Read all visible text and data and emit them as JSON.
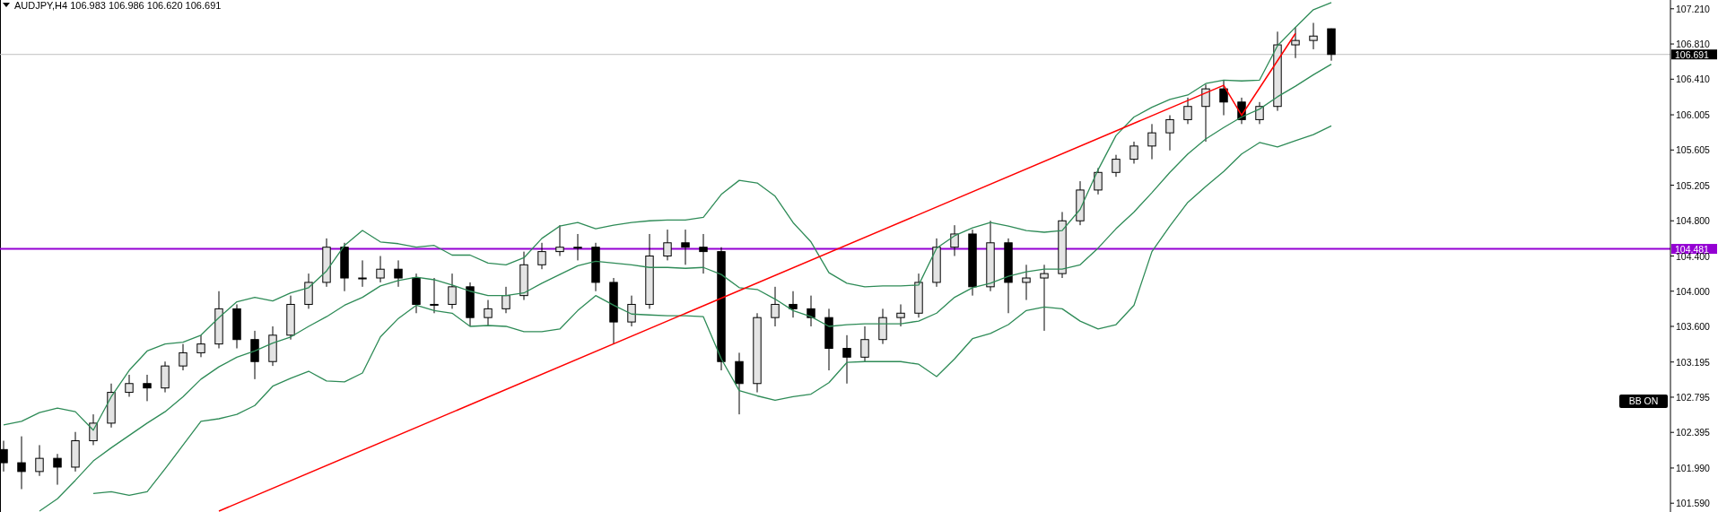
{
  "chart_data": {
    "type": "candlestick",
    "title": "AUDJPY,H4 106.983 106.986 106.620 106.691",
    "categories": [
      null,
      null,
      null,
      null,
      null,
      null,
      null,
      null,
      null,
      null,
      null,
      null,
      null,
      null,
      null,
      null,
      null,
      null,
      null,
      null,
      null,
      null,
      null,
      null,
      null,
      null,
      null,
      null,
      null,
      null,
      null,
      null,
      null,
      null,
      null,
      null,
      null,
      null,
      null,
      null,
      null,
      null,
      null,
      null,
      null,
      null,
      null,
      null,
      null,
      null,
      null,
      null,
      null,
      null,
      null,
      null,
      null,
      null,
      null,
      null,
      null,
      null,
      null,
      null,
      null,
      null,
      null,
      null,
      null,
      null,
      null,
      null,
      null,
      null,
      null
    ],
    "tick_labels": "y",
    "ylim": [
      101.49,
      107.31
    ],
    "yticks": [
      {
        "value": 101.59,
        "label": "101.590"
      },
      {
        "value": 101.99,
        "label": "101.990"
      },
      {
        "value": 102.395,
        "label": "102.395"
      },
      {
        "value": 102.795,
        "label": "102.795"
      },
      {
        "value": 103.195,
        "label": "103.195"
      },
      {
        "value": 103.6,
        "label": "103.600"
      },
      {
        "value": 104.0,
        "label": "104.000"
      },
      {
        "value": 104.4,
        "label": "104.400"
      },
      {
        "value": 104.8,
        "label": "104.800"
      },
      {
        "value": 105.205,
        "label": "105.205"
      },
      {
        "value": 105.605,
        "label": "105.605"
      },
      {
        "value": 106.005,
        "label": "106.005"
      },
      {
        "value": 106.41,
        "label": "106.410"
      },
      {
        "value": 106.81,
        "label": "106.810"
      },
      {
        "value": 107.21,
        "label": "107.210"
      }
    ],
    "ohlc": [
      [
        102.2,
        102.3,
        101.95,
        102.05
      ],
      [
        102.05,
        102.35,
        101.75,
        101.95
      ],
      [
        101.95,
        102.25,
        101.9,
        102.1
      ],
      [
        102.1,
        102.15,
        101.8,
        102.0
      ],
      [
        102.0,
        102.4,
        101.95,
        102.3
      ],
      [
        102.3,
        102.6,
        102.25,
        102.5
      ],
      [
        102.5,
        102.95,
        102.45,
        102.85
      ],
      [
        102.85,
        103.05,
        102.8,
        102.95
      ],
      [
        102.95,
        103.05,
        102.75,
        102.9
      ],
      [
        102.9,
        103.2,
        102.85,
        103.15
      ],
      [
        103.15,
        103.4,
        103.1,
        103.3
      ],
      [
        103.3,
        103.5,
        103.25,
        103.4
      ],
      [
        103.4,
        104.0,
        103.35,
        103.8
      ],
      [
        103.8,
        103.85,
        103.35,
        103.45
      ],
      [
        103.45,
        103.55,
        103.0,
        103.2
      ],
      [
        103.2,
        103.6,
        103.15,
        103.5
      ],
      [
        103.5,
        103.95,
        103.45,
        103.85
      ],
      [
        103.85,
        104.2,
        103.8,
        104.1
      ],
      [
        104.1,
        104.6,
        104.05,
        104.5
      ],
      [
        104.5,
        104.55,
        104.0,
        104.15
      ],
      [
        104.15,
        104.35,
        104.05,
        104.15
      ],
      [
        104.15,
        104.4,
        104.1,
        104.25
      ],
      [
        104.25,
        104.35,
        104.05,
        104.15
      ],
      [
        104.15,
        104.2,
        103.75,
        103.85
      ],
      [
        103.85,
        104.15,
        103.75,
        103.85
      ],
      [
        103.85,
        104.2,
        103.8,
        104.05
      ],
      [
        104.05,
        104.1,
        103.6,
        103.7
      ],
      [
        103.7,
        103.9,
        103.6,
        103.8
      ],
      [
        103.8,
        104.05,
        103.75,
        103.95
      ],
      [
        103.95,
        104.45,
        103.9,
        104.3
      ],
      [
        104.3,
        104.55,
        104.25,
        104.45
      ],
      [
        104.45,
        104.75,
        104.4,
        104.5
      ],
      [
        104.5,
        104.65,
        104.35,
        104.5
      ],
      [
        104.5,
        104.55,
        104.0,
        104.1
      ],
      [
        104.1,
        104.15,
        103.4,
        103.65
      ],
      [
        103.65,
        103.95,
        103.6,
        103.85
      ],
      [
        103.85,
        104.65,
        103.8,
        104.4
      ],
      [
        104.4,
        104.7,
        104.35,
        104.55
      ],
      [
        104.55,
        104.7,
        104.3,
        104.5
      ],
      [
        104.5,
        104.65,
        104.2,
        104.45
      ],
      [
        104.45,
        104.5,
        103.1,
        103.2
      ],
      [
        103.2,
        103.3,
        102.6,
        102.95
      ],
      [
        102.95,
        103.75,
        102.85,
        103.7
      ],
      [
        103.7,
        104.05,
        103.6,
        103.85
      ],
      [
        103.85,
        104.0,
        103.7,
        103.8
      ],
      [
        103.8,
        103.95,
        103.6,
        103.7
      ],
      [
        103.7,
        103.8,
        103.1,
        103.35
      ],
      [
        103.35,
        103.5,
        102.95,
        103.25
      ],
      [
        103.25,
        103.6,
        103.2,
        103.45
      ],
      [
        103.45,
        103.8,
        103.4,
        103.7
      ],
      [
        103.7,
        103.85,
        103.6,
        103.75
      ],
      [
        103.75,
        104.2,
        103.7,
        104.1
      ],
      [
        104.1,
        104.6,
        104.05,
        104.5
      ],
      [
        104.5,
        104.75,
        104.4,
        104.65
      ],
      [
        104.65,
        104.7,
        103.95,
        104.05
      ],
      [
        104.05,
        104.8,
        104.0,
        104.55
      ],
      [
        104.55,
        104.6,
        103.75,
        104.1
      ],
      [
        104.1,
        104.3,
        103.9,
        104.15
      ],
      [
        104.15,
        104.3,
        103.55,
        104.2
      ],
      [
        104.2,
        104.9,
        104.15,
        104.8
      ],
      [
        104.8,
        105.25,
        104.75,
        105.15
      ],
      [
        105.15,
        105.4,
        105.1,
        105.35
      ],
      [
        105.35,
        105.55,
        105.3,
        105.5
      ],
      [
        105.5,
        105.7,
        105.45,
        105.65
      ],
      [
        105.65,
        105.9,
        105.5,
        105.8
      ],
      [
        105.8,
        106.0,
        105.6,
        105.95
      ],
      [
        105.95,
        106.2,
        105.9,
        106.1
      ],
      [
        106.1,
        106.35,
        105.7,
        106.3
      ],
      [
        106.3,
        106.4,
        106.0,
        106.15
      ],
      [
        106.15,
        106.2,
        105.9,
        105.95
      ],
      [
        105.95,
        106.15,
        105.9,
        106.1
      ],
      [
        106.1,
        106.95,
        106.05,
        106.8
      ],
      [
        106.8,
        107.0,
        106.65,
        106.85
      ],
      [
        106.85,
        107.05,
        106.75,
        106.9
      ],
      [
        106.983,
        106.986,
        106.62,
        106.691
      ]
    ],
    "series": [
      {
        "type": "line",
        "color": "#2e8b57",
        "values": [
          102.48,
          102.52,
          102.62,
          102.67,
          102.63,
          102.42,
          102.8,
          103.1,
          103.32,
          103.4,
          103.42,
          103.5,
          103.7,
          103.88,
          103.93,
          103.89,
          103.98,
          104.04,
          104.23,
          104.52,
          104.69,
          104.56,
          104.54,
          104.5,
          104.52,
          104.41,
          104.41,
          104.32,
          104.3,
          104.38,
          104.6,
          104.74,
          104.78,
          104.71,
          104.75,
          104.78,
          104.8,
          104.81,
          104.81,
          104.84,
          105.1,
          105.26,
          105.23,
          105.08,
          104.78,
          104.56,
          104.21,
          104.09,
          104.05,
          104.06,
          104.06,
          104.07,
          104.49,
          104.63,
          104.72,
          104.78,
          104.74,
          104.69,
          104.67,
          104.69,
          104.93,
          105.38,
          105.77,
          105.98,
          106.09,
          106.18,
          106.23,
          106.36,
          106.4,
          106.39,
          106.4,
          106.79,
          107.0,
          107.2,
          107.28
        ]
      },
      {
        "type": "line",
        "color": "#2e8b57",
        "values": [
          null,
          null,
          101.5,
          101.64,
          101.85,
          102.07,
          102.22,
          102.36,
          102.5,
          102.63,
          102.8,
          103.0,
          103.14,
          103.25,
          103.32,
          103.41,
          103.48,
          103.6,
          103.71,
          103.84,
          103.93,
          104.06,
          104.12,
          104.16,
          104.13,
          104.07,
          104.0,
          103.95,
          103.95,
          103.98,
          104.09,
          104.19,
          104.29,
          104.34,
          104.32,
          104.3,
          104.27,
          104.27,
          104.26,
          104.27,
          104.19,
          104.04,
          104.02,
          103.91,
          103.78,
          103.71,
          103.6,
          103.62,
          103.63,
          103.63,
          103.63,
          103.66,
          103.75,
          103.93,
          104.04,
          104.09,
          104.17,
          104.22,
          104.25,
          104.25,
          104.3,
          104.49,
          104.71,
          104.9,
          105.12,
          105.35,
          105.56,
          105.73,
          105.86,
          105.98,
          106.07,
          106.21,
          106.33,
          106.46,
          106.58
        ]
      },
      {
        "type": "line",
        "color": "#2e8b57",
        "values": [
          null,
          null,
          null,
          null,
          null,
          101.7,
          101.72,
          101.68,
          101.72,
          101.98,
          102.25,
          102.52,
          102.55,
          102.6,
          102.7,
          102.92,
          103.01,
          103.09,
          102.98,
          102.97,
          103.07,
          103.48,
          103.69,
          103.84,
          103.78,
          103.75,
          103.6,
          103.61,
          103.6,
          103.54,
          103.54,
          103.57,
          103.78,
          103.95,
          103.84,
          103.74,
          103.73,
          103.72,
          103.72,
          103.71,
          103.23,
          102.87,
          102.81,
          102.76,
          102.8,
          102.83,
          102.96,
          103.19,
          103.2,
          103.2,
          103.2,
          103.17,
          103.03,
          103.23,
          103.46,
          103.52,
          103.62,
          103.78,
          103.82,
          103.8,
          103.66,
          103.57,
          103.62,
          103.84,
          104.45,
          104.74,
          105.01,
          105.19,
          105.36,
          105.56,
          105.69,
          105.64,
          105.71,
          105.78,
          105.88
        ]
      },
      {
        "type": "line",
        "color": "#ff0000",
        "values": [
          null,
          null,
          null,
          null,
          null,
          null,
          null,
          null,
          null,
          null,
          null,
          null,
          101.5,
          null,
          null,
          null,
          null,
          null,
          null,
          null,
          null,
          null,
          null,
          null,
          null,
          null,
          null,
          null,
          null,
          null,
          null,
          null,
          null,
          null,
          null,
          null,
          null,
          null,
          null,
          null,
          null,
          null,
          null,
          null,
          null,
          null,
          null,
          null,
          null,
          null,
          null,
          null,
          null,
          null,
          null,
          null,
          null,
          null,
          null,
          null,
          null,
          null,
          null,
          null,
          null,
          null,
          null,
          null,
          106.34,
          106.0,
          null,
          null,
          106.93,
          null,
          null
        ]
      }
    ],
    "ref_lines": [
      {
        "axis": "y",
        "value": 104.481,
        "label": "104.481",
        "color": "#9400d3"
      },
      {
        "axis": "y",
        "value": 106.691,
        "label": "106.691",
        "color": "#c0c0c0"
      }
    ],
    "annotations": [
      "BB ON"
    ],
    "grid": false
  }
}
